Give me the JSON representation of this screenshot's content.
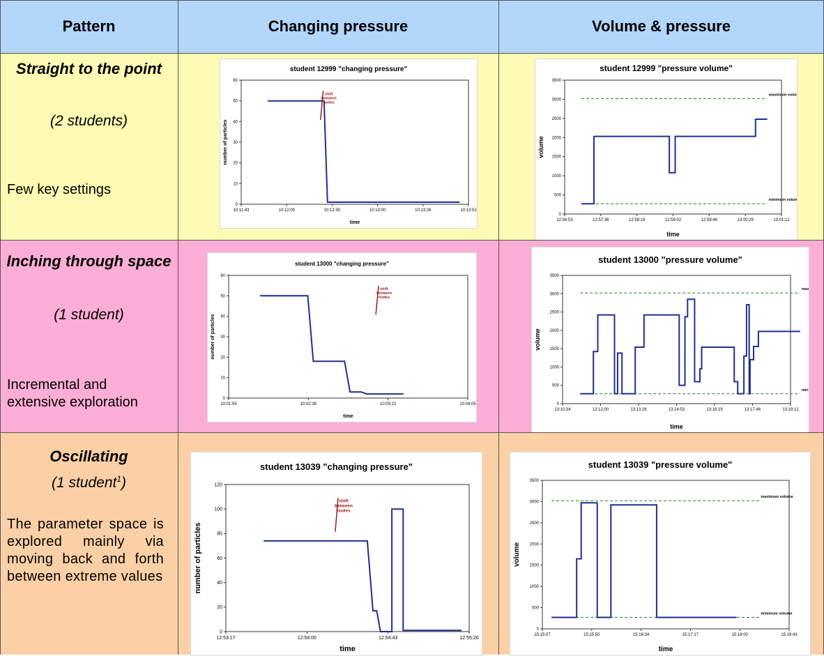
{
  "table": {
    "headers": [
      "Pattern",
      "Changing pressure",
      "Volume & pressure"
    ],
    "rows": [
      {
        "pattern_name": "Straight to the point",
        "student_count": "(2 students)",
        "description": "Few key settings"
      },
      {
        "pattern_name": "Inching through space",
        "student_count": "(1 student)",
        "description": "Incremental and extensive exploration"
      },
      {
        "pattern_name": "Oscillating",
        "student_count": "(1 student",
        "student_count_sup": "1",
        "student_count_close": ")",
        "description": "The parameter space is explored mainly via moving back and forth between extreme values"
      }
    ]
  },
  "colors": {
    "header_bg": "#b3d6fb",
    "row1_bg": "#fdfbb4",
    "row2_bg": "#fcaed6",
    "row3_bg": "#fbd0a6",
    "series_line": "#1f2f8f",
    "limit_line": "#1a7a1a",
    "annotation": "#9b1c1c"
  },
  "chart_data": [
    {
      "type": "line",
      "title": "student 12999 \"changing pressure\"",
      "xlabel": "time",
      "ylabel": "number of particles",
      "ylim": [
        0,
        60
      ],
      "yticks": [
        0,
        10,
        20,
        30,
        40,
        50,
        60
      ],
      "xlim": [
        0,
        129
      ],
      "xticks": [
        "10:11:43",
        "10:12:09",
        "10:12:35",
        "10:13:00",
        "10:13:26",
        "10:13:52"
      ],
      "series": [
        {
          "x": [
            15,
            47,
            49,
            124
          ],
          "y": [
            50,
            50,
            1,
            1
          ]
        }
      ],
      "annotation": {
        "text": "shift between nodes",
        "x": 45
      }
    },
    {
      "type": "line",
      "title": "student 12999 \"pressure volume\"",
      "xlabel": "time",
      "ylabel": "volume",
      "ylim": [
        0,
        3500
      ],
      "yticks": [
        0,
        500,
        1000,
        1500,
        2000,
        2500,
        3000,
        3500
      ],
      "xlim": [
        0,
        259
      ],
      "xticks": [
        "12:56:53",
        "12:57:36",
        "12:58:19",
        "12:59:02",
        "12:59:46",
        "13:00:29",
        "13:01:12"
      ],
      "series": [
        {
          "x": [
            20,
            35,
            35,
            125,
            125,
            132,
            132,
            228,
            228,
            242
          ],
          "y": [
            270,
            270,
            2030,
            2030,
            1080,
            1080,
            2030,
            2030,
            2480,
            2480
          ]
        }
      ],
      "max_volume": {
        "label": "maximum volume",
        "value": 3020,
        "x": [
          20,
          242
        ]
      },
      "min_volume": {
        "label": "minimum volume",
        "value": 270,
        "x": [
          20,
          242
        ]
      }
    },
    {
      "type": "line",
      "title": "student 13000 \"changing pressure\"",
      "xlabel": "time",
      "ylabel": "number of particles",
      "ylim": [
        0,
        60
      ],
      "yticks": [
        0,
        10,
        20,
        30,
        40,
        50,
        60
      ],
      "xlim": [
        0,
        130
      ],
      "xticks": [
        "10:01:55",
        "10:02:38",
        "10:03:22",
        "10:04:05"
      ],
      "series": [
        {
          "x": [
            17,
            43,
            46,
            63,
            66,
            72,
            75,
            83,
            83,
            95
          ],
          "y": [
            50,
            50,
            18,
            18,
            3,
            3,
            2,
            2,
            2,
            2
          ]
        }
      ],
      "annotation": {
        "text": "shift between nodes",
        "x": 80
      }
    },
    {
      "type": "line",
      "title": "student 13000 \"pressure volume\"",
      "xlabel": "time",
      "ylabel": "volume",
      "ylim": [
        0,
        3500
      ],
      "yticks": [
        0,
        500,
        1000,
        1500,
        2000,
        2500,
        3000,
        3500
      ],
      "xlim": [
        0,
        518
      ],
      "xticks": [
        "13:10:34",
        "13:12:00",
        "13:13:26",
        "13:14:53",
        "13:16:19",
        "13:17:46",
        "13:19:12"
      ],
      "series": [
        {
          "x": [
            40,
            70,
            70,
            80,
            80,
            88,
            88,
            118,
            118,
            125,
            125,
            135,
            135,
            165,
            165,
            185,
            185,
            215,
            215,
            265,
            265,
            278,
            278,
            284,
            284,
            288,
            288,
            300,
            300,
            312,
            312,
            316,
            316,
            320,
            320,
            328,
            328,
            390,
            390,
            398,
            398,
            412,
            412,
            418,
            418,
            424,
            424,
            426,
            426,
            434,
            434,
            445,
            445,
            458,
            458,
            540
          ],
          "y": [
            270,
            270,
            1420,
            1420,
            2420,
            2420,
            2420,
            2420,
            270,
            270,
            1380,
            1380,
            270,
            270,
            1540,
            1540,
            2420,
            2420,
            2420,
            2420,
            500,
            500,
            2370,
            2370,
            2850,
            2850,
            2850,
            2850,
            600,
            600,
            950,
            950,
            1540,
            1540,
            1540,
            1540,
            1540,
            1540,
            600,
            600,
            270,
            270,
            1300,
            1300,
            2700,
            2700,
            270,
            270,
            1200,
            1200,
            1560,
            1560,
            1970,
            1970,
            1970,
            1970
          ]
        }
      ],
      "max_volume": {
        "label": "maximum volume",
        "value": 3020,
        "x": [
          40,
          540
        ]
      },
      "min_volume": {
        "label": "minimum volume",
        "value": 270,
        "x": [
          40,
          540
        ]
      }
    },
    {
      "type": "line",
      "title": "student 13039 \"changing pressure\"",
      "xlabel": "time",
      "ylabel": "number of particles",
      "ylim": [
        0,
        120
      ],
      "yticks": [
        0,
        20,
        40,
        60,
        80,
        100,
        120
      ],
      "xlim": [
        0,
        129
      ],
      "xticks": [
        "12:53:17",
        "12:54:00",
        "12:54:43",
        "12:55:26"
      ],
      "series": [
        {
          "x": [
            20,
            75,
            78,
            80,
            82,
            88,
            88,
            94,
            94,
            125
          ],
          "y": [
            74,
            74,
            17,
            17,
            0,
            0,
            100,
            100,
            1,
            1
          ]
        }
      ],
      "annotation": {
        "text": "shift between nodes",
        "x": 58
      }
    },
    {
      "type": "line",
      "title": "student 13039 \"pressure volume\"",
      "xlabel": "time",
      "ylabel": "volume",
      "ylim": [
        0,
        3500
      ],
      "yticks": [
        0,
        500,
        1000,
        1500,
        2000,
        2500,
        3000,
        3500
      ],
      "xlim": [
        0,
        216
      ],
      "xticks": [
        "15:15:07",
        "15:15:50",
        "15:16:34",
        "15:17:17",
        "15:18:00",
        "15:18:43"
      ],
      "series": [
        {
          "x": [
            8,
            30,
            30,
            34,
            34,
            48,
            48,
            60,
            60,
            100,
            100,
            170
          ],
          "y": [
            270,
            270,
            1650,
            1650,
            2970,
            2970,
            270,
            270,
            2920,
            2920,
            270,
            270
          ]
        }
      ],
      "max_volume": {
        "label": "maximum volume",
        "value": 3020,
        "x": [
          8,
          190
        ]
      },
      "min_volume": {
        "label": "minimum volume",
        "value": 270,
        "x": [
          8,
          190
        ]
      }
    }
  ]
}
